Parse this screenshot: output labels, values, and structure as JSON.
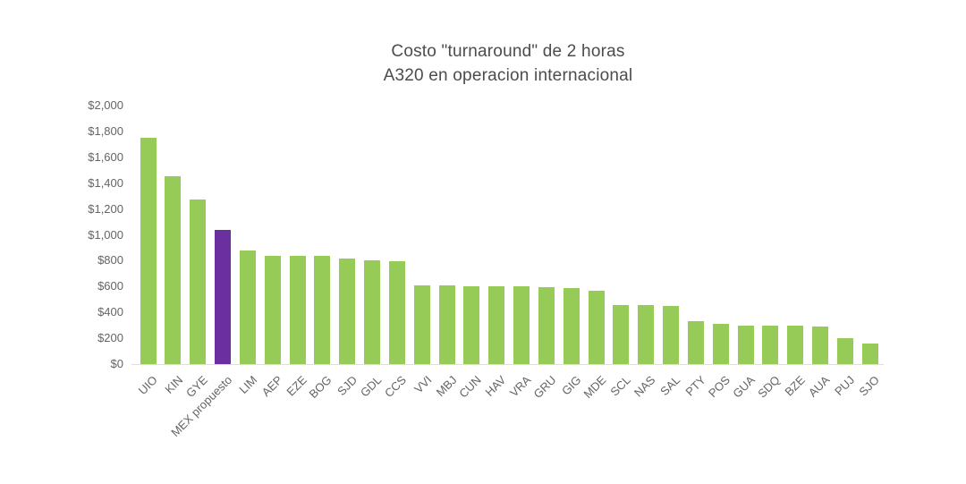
{
  "chart_data": {
    "type": "bar",
    "title": "Costo \"turnaround\" de 2 horas",
    "subtitle": "A320 en operacion internacional",
    "xlabel": "",
    "ylabel": "",
    "legend": "none",
    "grid": false,
    "ylim": [
      0,
      2000
    ],
    "ytick_step": 200,
    "ytick_labels": [
      "$0",
      "$200",
      "$400",
      "$600",
      "$800",
      "$1,000",
      "$1,200",
      "$1,400",
      "$1,600",
      "$1,800",
      "$2,000"
    ],
    "categories": [
      "UIO",
      "KIN",
      "GYE",
      "MEX propuesto",
      "LIM",
      "AEP",
      "EZE",
      "BOG",
      "SJD",
      "GDL",
      "CCS",
      "VVI",
      "MBJ",
      "CUN",
      "HAV",
      "VRA",
      "GRU",
      "GIG",
      "MDE",
      "SCL",
      "NAS",
      "SAL",
      "PTY",
      "POS",
      "GUA",
      "SDQ",
      "BZE",
      "AUA",
      "PUJ",
      "SJO"
    ],
    "values": [
      1750,
      1450,
      1275,
      1040,
      880,
      840,
      840,
      835,
      815,
      805,
      795,
      610,
      610,
      605,
      600,
      600,
      595,
      585,
      565,
      460,
      455,
      450,
      330,
      310,
      300,
      295,
      295,
      290,
      200,
      160
    ],
    "highlight_category": "MEX propuesto",
    "highlight_index": 3,
    "colors": {
      "bar": "#97cb57",
      "highlight_bar": "#6b2fa0",
      "axis_line": "#dedede",
      "tick_text": "#656565",
      "title_text": "#4c4c4c",
      "background": "#ffffff"
    }
  }
}
